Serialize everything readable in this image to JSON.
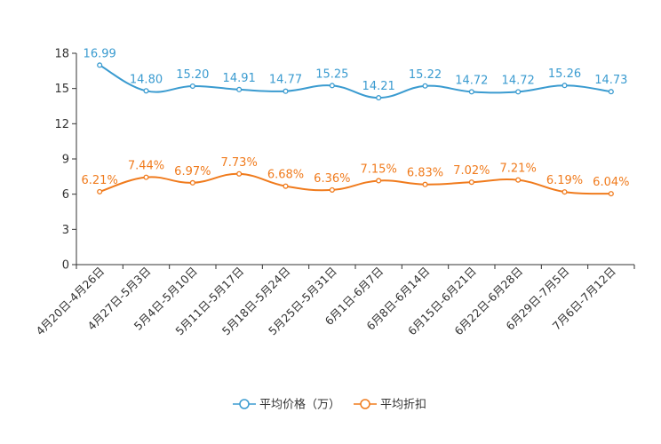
{
  "chart_data": {
    "type": "line",
    "title": "",
    "xlabel": "",
    "ylabel": "",
    "ylim": [
      0,
      18
    ],
    "yticks": [
      0,
      3,
      6,
      9,
      12,
      15,
      18
    ],
    "grid": false,
    "legend": "bottom-center",
    "categories": [
      "4月20日-4月26日",
      "4月27日-5月3日",
      "5月4日-5月10日",
      "5月11日-5月17日",
      "5月18日-5月24日",
      "5月25日-5月31日",
      "6月1日-6月7日",
      "6月8日-6月14日",
      "6月15日-6月21日",
      "6月22日-6月28日",
      "6月29日-7月5日",
      "7月6日-7月12日"
    ],
    "series": [
      {
        "name": "平均价格（万）",
        "color": "#3a9bd0",
        "values": [
          16.99,
          14.8,
          15.2,
          14.91,
          14.77,
          15.25,
          14.21,
          15.22,
          14.72,
          14.72,
          15.26,
          14.73
        ],
        "labels": [
          "16.99",
          "14.80",
          "15.20",
          "14.91",
          "14.77",
          "15.25",
          "14.21",
          "15.22",
          "14.72",
          "14.72",
          "15.26",
          "14.73"
        ]
      },
      {
        "name": "平均折扣",
        "color": "#f07b1d",
        "values": [
          6.21,
          7.44,
          6.97,
          7.73,
          6.68,
          6.36,
          7.15,
          6.83,
          7.02,
          7.21,
          6.19,
          6.04
        ],
        "labels": [
          "6.21%",
          "7.44%",
          "6.97%",
          "7.73%",
          "6.68%",
          "6.36%",
          "7.15%",
          "6.83%",
          "7.02%",
          "7.21%",
          "6.19%",
          "6.04%"
        ]
      }
    ]
  }
}
